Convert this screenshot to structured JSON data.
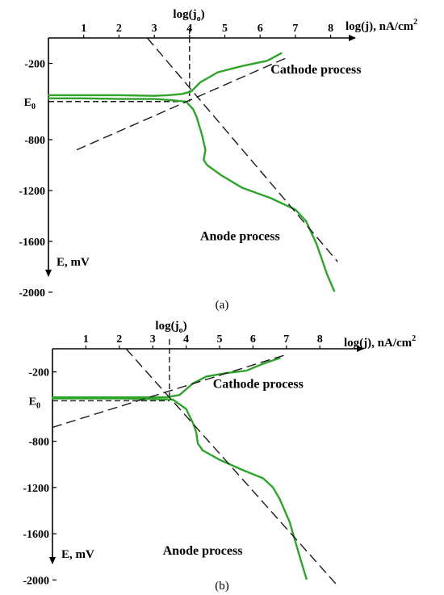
{
  "chart_data": [
    {
      "panel": "(a)",
      "type": "line",
      "xlabel": "log(j), nA/cm",
      "xlabel_sup": "2",
      "ylabel": "E, mV",
      "x_ticks": [
        "1",
        "2",
        "3",
        "4",
        "5",
        "6",
        "7",
        "8"
      ],
      "y_ticks": [
        "-200",
        "-800",
        "-1200",
        "-1600",
        "-2000"
      ],
      "xlim": [
        0,
        8.6
      ],
      "ylim": [
        0,
        -2300
      ],
      "e0": {
        "label": "E",
        "sub": "0",
        "value": -500
      },
      "log_j0": {
        "label": "log(j",
        "sub": "o",
        "close": ")",
        "value": 4.0
      },
      "annotations": [
        {
          "text": "Cathode process",
          "x": 6.3,
          "y": -280
        },
        {
          "text": "Anode process",
          "x": 4.3,
          "y": -1590
        }
      ],
      "series": [
        {
          "kind": "measured-cathode",
          "points": [
            [
              0.0,
              -450
            ],
            [
              1,
              -450
            ],
            [
              2,
              -450
            ],
            [
              3.0,
              -455
            ],
            [
              3.4,
              -450
            ],
            [
              3.8,
              -440
            ],
            [
              4.05,
              -420
            ],
            [
              4.3,
              -350
            ],
            [
              4.8,
              -270
            ],
            [
              5.5,
              -220
            ],
            [
              6.2,
              -180
            ],
            [
              6.6,
              -120
            ]
          ]
        },
        {
          "kind": "measured-anode",
          "points": [
            [
              0.0,
              -475
            ],
            [
              1,
              -475
            ],
            [
              2,
              -480
            ],
            [
              3.0,
              -480
            ],
            [
              3.5,
              -490
            ],
            [
              3.9,
              -500
            ],
            [
              4.1,
              -560
            ],
            [
              4.2,
              -620
            ],
            [
              4.35,
              -760
            ],
            [
              4.45,
              -880
            ],
            [
              4.4,
              -960
            ],
            [
              4.5,
              -1000
            ],
            [
              4.9,
              -1080
            ],
            [
              5.5,
              -1180
            ],
            [
              6.3,
              -1260
            ],
            [
              7.0,
              -1350
            ],
            [
              7.3,
              -1440
            ],
            [
              7.6,
              -1620
            ],
            [
              7.9,
              -1860
            ],
            [
              8.1,
              -1990
            ]
          ]
        },
        {
          "kind": "tafel-cathodic",
          "points": [
            [
              0.8,
              -880
            ],
            [
              6.8,
              -150
            ]
          ]
        },
        {
          "kind": "tafel-anodic",
          "points": [
            [
              2.8,
              0
            ],
            [
              8.2,
              -1760
            ]
          ]
        }
      ]
    },
    {
      "panel": "(b)",
      "type": "line",
      "xlabel": "log(j), nA/cm",
      "xlabel_sup": "2",
      "ylabel": "E, mV",
      "x_ticks": [
        "1",
        "2",
        "3",
        "4",
        "5",
        "6",
        "7",
        "8"
      ],
      "y_ticks": [
        "-200",
        "-800",
        "-1200",
        "-1600",
        "-2000"
      ],
      "xlim": [
        0,
        8.7
      ],
      "ylim": [
        0,
        -2300
      ],
      "e0": {
        "label": "E",
        "sub": "0",
        "value": -450
      },
      "log_j0": {
        "label": "log(j",
        "sub": "o",
        "close": ")",
        "value": 3.5
      },
      "annotations": [
        {
          "text": "Cathode process",
          "x": 4.8,
          "y": -340
        },
        {
          "text": "Anode process",
          "x": 3.3,
          "y": -1780
        }
      ],
      "series": [
        {
          "kind": "measured-cathode",
          "points": [
            [
              0.0,
              -420
            ],
            [
              1,
              -420
            ],
            [
              2,
              -420
            ],
            [
              3.0,
              -420
            ],
            [
              3.4,
              -420
            ],
            [
              3.8,
              -400
            ],
            [
              4.2,
              -300
            ],
            [
              4.6,
              -240
            ],
            [
              5.2,
              -210
            ],
            [
              5.8,
              -190
            ],
            [
              6.3,
              -130
            ],
            [
              6.8,
              -80
            ]
          ]
        },
        {
          "kind": "measured-anode",
          "points": [
            [
              0.0,
              -430
            ],
            [
              1,
              -430
            ],
            [
              2,
              -430
            ],
            [
              3.0,
              -435
            ],
            [
              3.6,
              -440
            ],
            [
              4.0,
              -520
            ],
            [
              4.1,
              -580
            ],
            [
              4.2,
              -640
            ],
            [
              4.3,
              -720
            ],
            [
              4.35,
              -820
            ],
            [
              4.5,
              -880
            ],
            [
              5.0,
              -960
            ],
            [
              5.7,
              -1050
            ],
            [
              6.3,
              -1120
            ],
            [
              6.6,
              -1200
            ],
            [
              6.8,
              -1300
            ],
            [
              7.1,
              -1500
            ],
            [
              7.4,
              -1800
            ],
            [
              7.6,
              -1990
            ]
          ]
        },
        {
          "kind": "tafel-cathodic",
          "points": [
            [
              0.0,
              -680
            ],
            [
              7.0,
              -50
            ]
          ]
        },
        {
          "kind": "tafel-anodic",
          "points": [
            [
              2.2,
              0
            ],
            [
              8.5,
              -2040
            ]
          ]
        }
      ]
    }
  ],
  "colors": {
    "measured": "#2fa32a",
    "dashed": "#1a1a1a",
    "axis": "#000000"
  }
}
